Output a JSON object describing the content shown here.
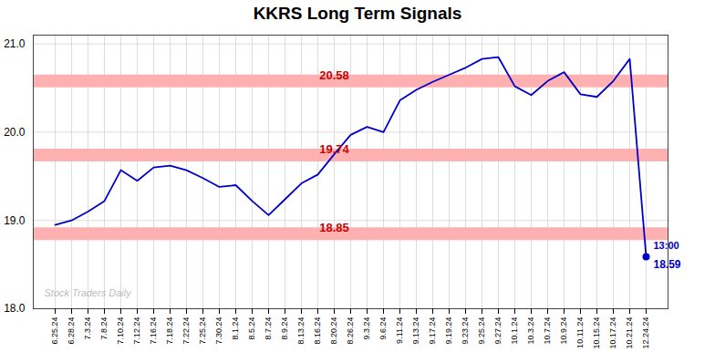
{
  "chart_data": {
    "type": "line",
    "title": "KKRS Long Term Signals",
    "categories": [
      "6.25.24",
      "6.28.24",
      "7.3.24",
      "7.8.24",
      "7.10.24",
      "7.12.24",
      "7.16.24",
      "7.18.24",
      "7.22.24",
      "7.25.24",
      "7.30.24",
      "8.1.24",
      "8.5.24",
      "8.7.24",
      "8.9.24",
      "8.13.24",
      "8.16.24",
      "8.20.24",
      "8.26.24",
      "9.3.24",
      "9.6.24",
      "9.11.24",
      "9.13.24",
      "9.17.24",
      "9.19.24",
      "9.23.24",
      "9.25.24",
      "9.27.24",
      "10.1.24",
      "10.3.24",
      "10.7.24",
      "10.9.24",
      "10.11.24",
      "10.15.24",
      "10.17.24",
      "10.21.24",
      "12.24.24"
    ],
    "values": [
      18.95,
      19.0,
      19.1,
      19.22,
      19.57,
      19.45,
      19.6,
      19.62,
      19.57,
      19.48,
      19.38,
      19.4,
      19.22,
      19.06,
      19.24,
      19.42,
      19.52,
      19.75,
      19.97,
      20.06,
      20.0,
      20.36,
      20.48,
      20.57,
      20.65,
      20.73,
      20.83,
      20.85,
      20.52,
      20.42,
      20.58,
      20.68,
      20.43,
      20.4,
      20.58,
      20.83,
      18.59
    ],
    "color": "#0000cc",
    "ylim": [
      18,
      21.1
    ],
    "yticks": [
      18,
      19,
      20,
      21
    ],
    "grid": true,
    "hlines": [
      {
        "value": 20.58,
        "label": "20.58"
      },
      {
        "value": 19.74,
        "label": "19.74"
      },
      {
        "value": 18.85,
        "label": "18.85"
      }
    ],
    "hline_color": "#ffb0b0",
    "hline_label_color": "#cc0000",
    "last_point": {
      "time_label": "13:00",
      "price_label": "18.59",
      "color": "#0000cc"
    },
    "watermark": "Stock Traders Daily"
  }
}
